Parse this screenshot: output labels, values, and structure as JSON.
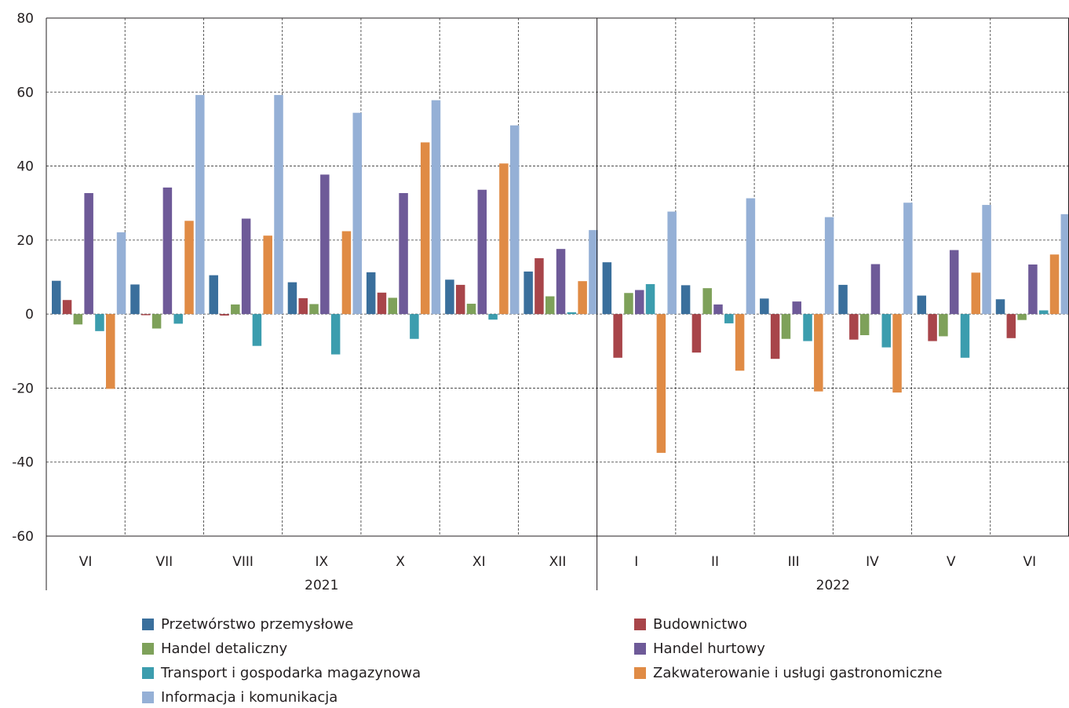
{
  "chart_data": {
    "type": "bar",
    "title": "",
    "xlabel": "",
    "ylabel": "",
    "ylim": [
      -60,
      80
    ],
    "yticks": [
      -60,
      -40,
      -20,
      0,
      20,
      40,
      60,
      80
    ],
    "grid": true,
    "legend_position": "bottom",
    "categories": [
      "VI",
      "VII",
      "VIII",
      "IX",
      "X",
      "XI",
      "XII",
      "I",
      "II",
      "III",
      "IV",
      "V",
      "VI"
    ],
    "years": [
      {
        "label": "2021",
        "count": 7
      },
      {
        "label": "2022",
        "count": 6
      }
    ],
    "series": [
      {
        "name": "Przetwórstwo przemysłowe",
        "color": "#3a6f9c",
        "values": [
          9,
          8,
          10.5,
          8.6,
          11.3,
          9.3,
          11.5,
          14,
          7.8,
          4.2,
          7.9,
          5,
          4
        ]
      },
      {
        "name": "Budownictwo",
        "color": "#a8454a",
        "values": [
          3.8,
          -0.3,
          -0.4,
          4.3,
          5.8,
          7.9,
          15.1,
          -11.8,
          -10.4,
          -12.1,
          -6.9,
          -7.3,
          -6.5
        ]
      },
      {
        "name": "Handel detaliczny",
        "color": "#7ea15a",
        "values": [
          -2.8,
          -3.9,
          2.6,
          2.7,
          4.4,
          2.8,
          4.8,
          5.7,
          7,
          -6.7,
          -5.7,
          -6,
          -1.6
        ]
      },
      {
        "name": "Handel hurtowy",
        "color": "#6e5a98",
        "values": [
          32.7,
          34.2,
          25.8,
          37.7,
          32.7,
          33.6,
          17.6,
          6.5,
          2.6,
          3.4,
          13.5,
          17.3,
          13.4
        ]
      },
      {
        "name": "Transport i gospodarka magazynowa",
        "color": "#3c9dae",
        "values": [
          -4.6,
          -2.6,
          -8.6,
          -10.9,
          -6.7,
          -1.5,
          0.5,
          8.1,
          -2.5,
          -7.3,
          -9,
          -11.8,
          1
        ]
      },
      {
        "name": "Zakwaterowanie i usługi gastronomiczne",
        "color": "#e08b45",
        "values": [
          -20.2,
          25.2,
          21.2,
          22.4,
          46.4,
          40.7,
          8.9,
          -37.5,
          -15.3,
          -20.9,
          -21.2,
          11.2,
          16.1
        ]
      },
      {
        "name": "Informacja i komunikacja",
        "color": "#95b0d6",
        "values": [
          22.1,
          59.2,
          59.2,
          54.4,
          57.8,
          51,
          22.7,
          27.7,
          31.3,
          26.2,
          30.1,
          29.5,
          27
        ]
      }
    ]
  }
}
